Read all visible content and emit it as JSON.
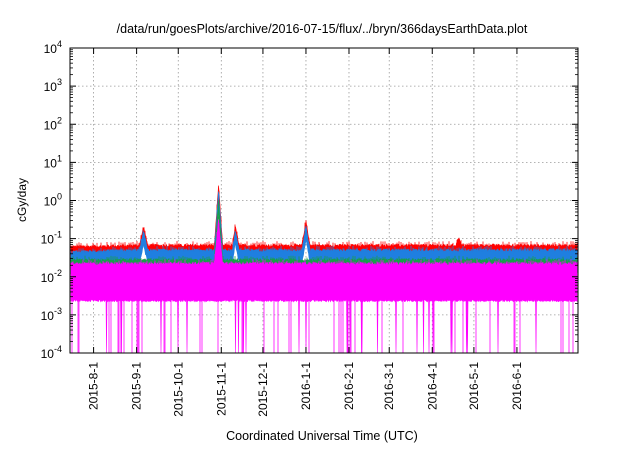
{
  "chart_data": {
    "type": "line",
    "title": "/data/run/goesPlots/archive/2016-07-15/flux/../bryn/366daysEarthData.plot",
    "xlabel": "Coordinated Universal Time (UTC)",
    "ylabel": "cGy/day",
    "x_range": [
      "2015-07-15",
      "2016-07-15"
    ],
    "y_scale": "log",
    "ylim": [
      0.0001,
      10000
    ],
    "grid": true,
    "legend": "none",
    "x_ticks": [
      {
        "date": "2015-08-01",
        "label": "2015-8-1"
      },
      {
        "date": "2015-09-01",
        "label": "2015-9-1"
      },
      {
        "date": "2015-10-01",
        "label": "2015-10-1"
      },
      {
        "date": "2015-11-01",
        "label": "2015-11-1"
      },
      {
        "date": "2015-12-01",
        "label": "2015-12-1"
      },
      {
        "date": "2016-01-01",
        "label": "2016-1-1"
      },
      {
        "date": "2016-02-01",
        "label": "2016-2-1"
      },
      {
        "date": "2016-03-01",
        "label": "2016-3-1"
      },
      {
        "date": "2016-04-01",
        "label": "2016-4-1"
      },
      {
        "date": "2016-05-01",
        "label": "2016-5-1"
      },
      {
        "date": "2016-06-01",
        "label": "2016-6-1"
      }
    ],
    "y_ticks": [
      {
        "value": 0.0001,
        "base": "10",
        "exp": "-4"
      },
      {
        "value": 0.001,
        "base": "10",
        "exp": "-3"
      },
      {
        "value": 0.01,
        "base": "10",
        "exp": "-2"
      },
      {
        "value": 0.1,
        "base": "10",
        "exp": "-1"
      },
      {
        "value": 1,
        "base": "10",
        "exp": "0"
      },
      {
        "value": 10,
        "base": "10",
        "exp": "1"
      },
      {
        "value": 100,
        "base": "10",
        "exp": "2"
      },
      {
        "value": 1000,
        "base": "10",
        "exp": "3"
      },
      {
        "value": 10000,
        "base": "10",
        "exp": "4"
      }
    ],
    "series": [
      {
        "color": "#ff0000",
        "baseline": 0.055,
        "points": [
          [
            "2015-07-15",
            0.055
          ],
          [
            "2015-09-03",
            0.06
          ],
          [
            "2015-09-06",
            0.19
          ],
          [
            "2015-09-09",
            0.06
          ],
          [
            "2015-10-27",
            0.06
          ],
          [
            "2015-10-30",
            2.3
          ],
          [
            "2015-11-02",
            0.06
          ],
          [
            "2015-11-09",
            0.06
          ],
          [
            "2015-11-11",
            0.19
          ],
          [
            "2015-11-14",
            0.06
          ],
          [
            "2015-12-29",
            0.06
          ],
          [
            "2016-01-01",
            0.26
          ],
          [
            "2016-01-04",
            0.06
          ],
          [
            "2016-04-18",
            0.06
          ],
          [
            "2016-04-20",
            0.1
          ],
          [
            "2016-04-22",
            0.06
          ],
          [
            "2016-07-15",
            0.06
          ]
        ]
      },
      {
        "color": "#1f7fe0",
        "baseline": 0.04,
        "points": [
          [
            "2015-07-15",
            0.04
          ],
          [
            "2015-09-03",
            0.045
          ],
          [
            "2015-09-06",
            0.14
          ],
          [
            "2015-09-09",
            0.045
          ],
          [
            "2015-10-27",
            0.045
          ],
          [
            "2015-10-30",
            1.6
          ],
          [
            "2015-11-02",
            0.045
          ],
          [
            "2015-11-09",
            0.045
          ],
          [
            "2015-11-11",
            0.14
          ],
          [
            "2015-11-14",
            0.045
          ],
          [
            "2015-12-29",
            0.045
          ],
          [
            "2016-01-01",
            0.19
          ],
          [
            "2016-01-04",
            0.045
          ],
          [
            "2016-07-15",
            0.045
          ]
        ]
      },
      {
        "color": "#1a9e4a",
        "baseline": 0.025,
        "points": [
          [
            "2015-07-15",
            0.025
          ],
          [
            "2015-10-27",
            0.025
          ],
          [
            "2015-10-30",
            0.9
          ],
          [
            "2015-11-02",
            0.025
          ],
          [
            "2016-07-15",
            0.025
          ]
        ]
      },
      {
        "color": "#ff00ff",
        "baseline": 0.02,
        "floor": 0.0025,
        "points": [
          [
            "2015-07-15",
            0.02
          ],
          [
            "2015-10-27",
            0.02
          ],
          [
            "2015-10-30",
            0.3
          ],
          [
            "2015-11-02",
            0.02
          ],
          [
            "2016-07-15",
            0.02
          ]
        ]
      }
    ]
  }
}
